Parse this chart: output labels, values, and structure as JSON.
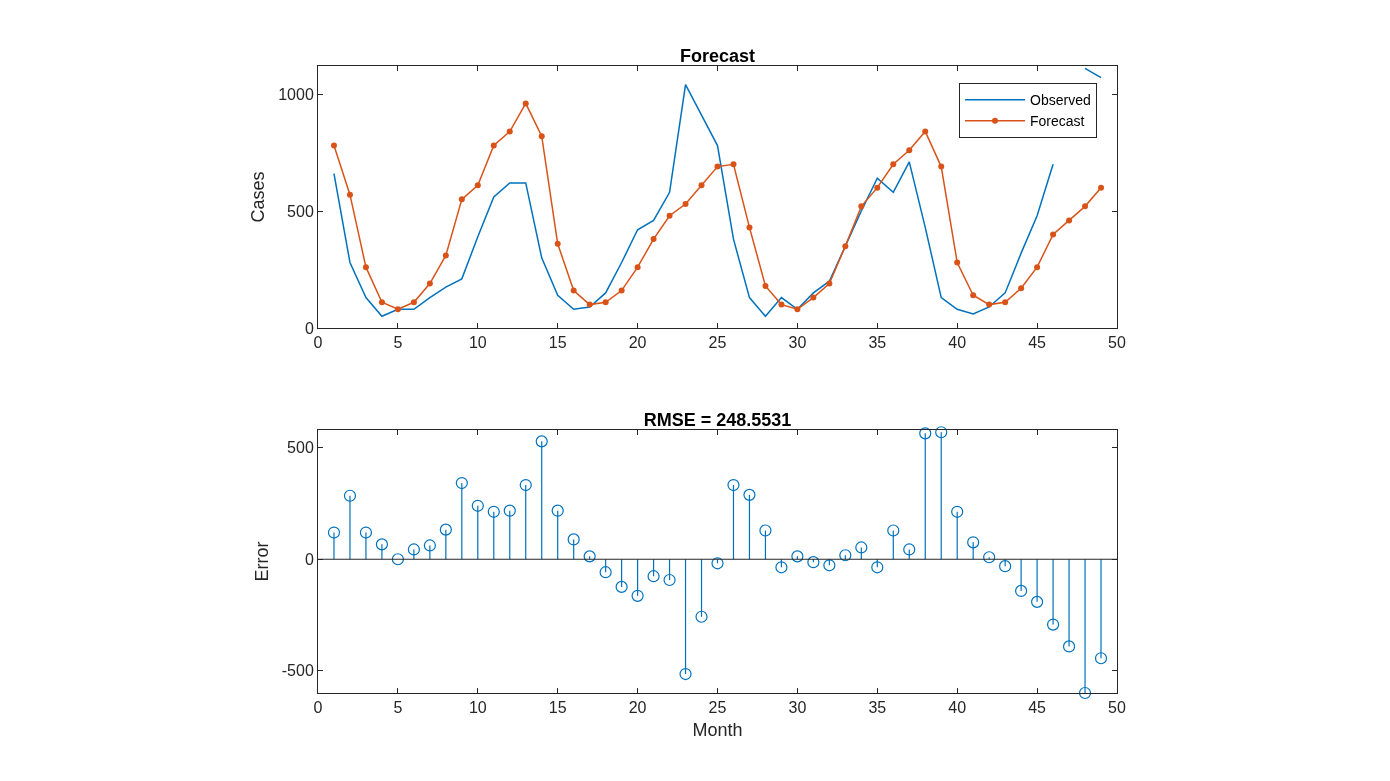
{
  "chart_data": [
    {
      "type": "line",
      "title": "Forecast",
      "ylabel": "Cases",
      "x": [
        1,
        2,
        3,
        4,
        5,
        6,
        7,
        8,
        9,
        10,
        11,
        12,
        13,
        14,
        15,
        16,
        17,
        18,
        19,
        20,
        21,
        22,
        23,
        24,
        25,
        26,
        27,
        28,
        29,
        30,
        31,
        32,
        33,
        34,
        35,
        36,
        37,
        38,
        39,
        40,
        41,
        42,
        43,
        44,
        45,
        46,
        47,
        48,
        49
      ],
      "series": [
        {
          "name": "Observed",
          "color": "#0072bd",
          "marker": "none",
          "values": [
            660,
            280,
            130,
            50,
            80,
            80,
            130,
            175,
            210,
            390,
            560,
            620,
            620,
            300,
            140,
            80,
            90,
            150,
            280,
            420,
            460,
            580,
            1040,
            910,
            780,
            380,
            130,
            50,
            130,
            80,
            150,
            200,
            350,
            500,
            640,
            580,
            710,
            430,
            130,
            80,
            60,
            90,
            150,
            320,
            480,
            700,
            null,
            1110,
            1070
          ]
        },
        {
          "name": "Forecast",
          "color": "#d95319",
          "marker": "circle",
          "values": [
            780,
            570,
            260,
            110,
            80,
            110,
            190,
            310,
            550,
            610,
            780,
            840,
            960,
            820,
            360,
            160,
            100,
            110,
            160,
            260,
            380,
            480,
            530,
            610,
            690,
            700,
            430,
            180,
            100,
            80,
            130,
            190,
            350,
            520,
            600,
            700,
            760,
            840,
            690,
            280,
            140,
            100,
            110,
            170,
            260,
            400,
            460,
            520,
            600
          ]
        }
      ],
      "xlim": [
        0,
        50
      ],
      "xticks": [
        0,
        5,
        10,
        15,
        20,
        25,
        30,
        35,
        40,
        45,
        50
      ],
      "ylim": [
        0,
        1120
      ],
      "yticks": [
        0,
        500,
        1000
      ],
      "grid": false,
      "legend": "top right",
      "line_style": "solid"
    },
    {
      "type": "lollipop",
      "title": "RMSE = 248.5531",
      "xlabel": "Month",
      "ylabel": "Error",
      "x": [
        1,
        2,
        3,
        4,
        5,
        6,
        7,
        8,
        9,
        10,
        11,
        12,
        13,
        14,
        15,
        16,
        17,
        18,
        19,
        20,
        21,
        22,
        23,
        24,
        25,
        26,
        27,
        28,
        29,
        30,
        31,
        32,
        33,
        34,
        35,
        36,
        37,
        38,
        39,
        40,
        41,
        42,
        43,
        44,
        45,
        46,
        47,
        48,
        49
      ],
      "series": [
        {
          "color": "#0072bd",
          "values": [
            120,
            285,
            120,
            67,
            0,
            44,
            62,
            133,
            342,
            240,
            213,
            218,
            333,
            529,
            218,
            89,
            13,
            -58,
            -124,
            -164,
            -76,
            -93,
            -515,
            -258,
            -18,
            333,
            289,
            129,
            -36,
            13,
            -13,
            -27,
            18,
            53,
            -36,
            129,
            44,
            565,
            570,
            213,
            76,
            9,
            -31,
            -142,
            -191,
            -293,
            -391,
            -600,
            -444
          ]
        }
      ],
      "ref_lines": [
        {
          "axis": "y",
          "value": 0,
          "color": "#262626"
        }
      ],
      "xlim": [
        0,
        50
      ],
      "xticks": [
        0,
        5,
        10,
        15,
        20,
        25,
        30,
        35,
        40,
        45,
        50
      ],
      "ylim": [
        -600,
        580
      ],
      "yticks": [
        -500,
        0,
        500
      ],
      "grid": false,
      "legend": false,
      "marker": "circle"
    }
  ]
}
